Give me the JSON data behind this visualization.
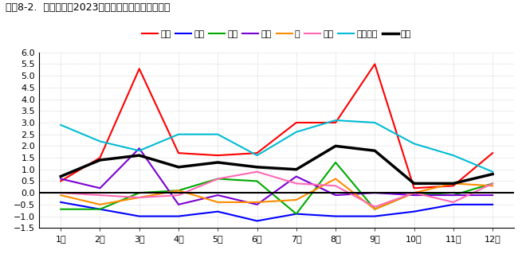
{
  "title": "図表8-2.  指数推移（2023年の各月の指数）［東海］",
  "months": [
    "1月",
    "2月",
    "3月",
    "4月",
    "5月",
    "6月",
    "7月",
    "8月",
    "9月",
    "10月",
    "11月",
    "12月"
  ],
  "series": {
    "高温": {
      "values": [
        0.5,
        1.5,
        5.3,
        1.7,
        1.6,
        1.7,
        3.0,
        3.0,
        5.5,
        0.2,
        0.3,
        1.7
      ],
      "color": "#ff0000",
      "linewidth": 1.5
    },
    "低温": {
      "values": [
        -0.4,
        -0.7,
        -1.0,
        -1.0,
        -0.8,
        -1.2,
        -0.9,
        -1.0,
        -1.0,
        -0.8,
        -0.5,
        -0.5
      ],
      "color": "#0000ff",
      "linewidth": 1.5
    },
    "降水": {
      "values": [
        -0.7,
        -0.7,
        0.0,
        0.1,
        0.6,
        0.5,
        -0.9,
        1.3,
        -0.7,
        0.0,
        -0.1,
        0.4
      ],
      "color": "#00aa00",
      "linewidth": 1.5
    },
    "乾燥": {
      "values": [
        0.6,
        0.2,
        1.9,
        -0.5,
        -0.1,
        -0.5,
        0.7,
        -0.1,
        0.0,
        -0.1,
        -0.1,
        -0.1
      ],
      "color": "#7b00d4",
      "linewidth": 1.5
    },
    "風": {
      "values": [
        -0.1,
        -0.5,
        -0.2,
        0.1,
        -0.4,
        -0.4,
        -0.3,
        0.6,
        -0.7,
        0.0,
        0.4,
        0.3
      ],
      "color": "#ff8c00",
      "linewidth": 1.5
    },
    "湿度": {
      "values": [
        0.0,
        -0.1,
        -0.2,
        -0.1,
        0.6,
        0.9,
        0.4,
        0.3,
        -0.6,
        0.0,
        -0.4,
        0.4
      ],
      "color": "#ff69b4",
      "linewidth": 1.5
    },
    "海面水位": {
      "values": [
        2.9,
        2.2,
        1.8,
        2.5,
        2.5,
        1.6,
        2.6,
        3.1,
        3.0,
        2.1,
        1.6,
        0.9
      ],
      "color": "#00bcd4",
      "linewidth": 1.5
    },
    "合成": {
      "values": [
        0.7,
        1.4,
        1.6,
        1.1,
        1.3,
        1.1,
        1.0,
        2.0,
        1.8,
        0.4,
        0.4,
        0.8
      ],
      "color": "#000000",
      "linewidth": 2.5
    }
  },
  "ylim": [
    -1.5,
    6.0
  ],
  "yticks": [
    -1.5,
    -1.0,
    -0.5,
    0.0,
    0.5,
    1.0,
    1.5,
    2.0,
    2.5,
    3.0,
    3.5,
    4.0,
    4.5,
    5.0,
    5.5,
    6.0
  ],
  "background_color": "#ffffff",
  "grid_color": "#bbbbbb",
  "title_fontsize": 9,
  "legend_fontsize": 8,
  "tick_fontsize": 8
}
